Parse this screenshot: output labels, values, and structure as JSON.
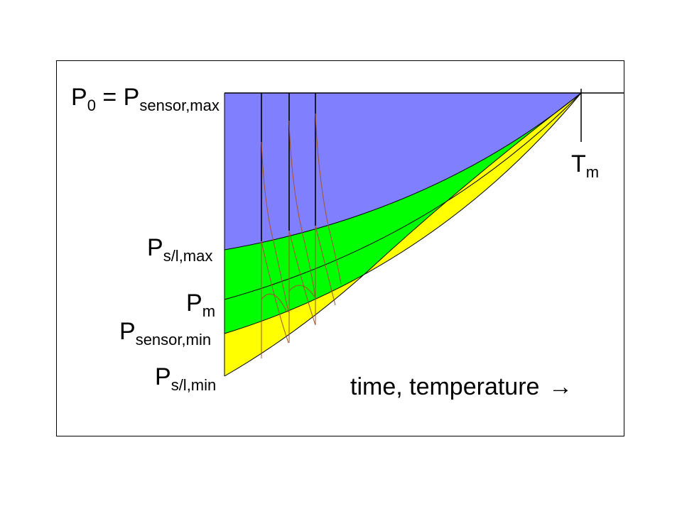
{
  "diagram": {
    "labels": {
      "p0_main": "P",
      "p0_sub": "0",
      "p0_eq": " = P",
      "p0_eq_sub": "sensor,max",
      "tm_main": "T",
      "tm_sub": "m",
      "pslmax_main": "P",
      "pslmax_sub": "s/l,max",
      "pm_main": "P",
      "pm_sub": "m",
      "psensormin_main": "P",
      "psensormin_sub": "sensor,min",
      "pslmin_main": "P",
      "pslmin_sub": "s/l,min",
      "axis_label": "time, temperature",
      "axis_arrow": "→"
    },
    "colors": {
      "region_top": "#8080ff",
      "region_middle": "#00ff00",
      "region_bottom": "#ffff00",
      "thin_curve": "#000000",
      "path_line": "#a0522d",
      "frame": "#000000"
    }
  }
}
